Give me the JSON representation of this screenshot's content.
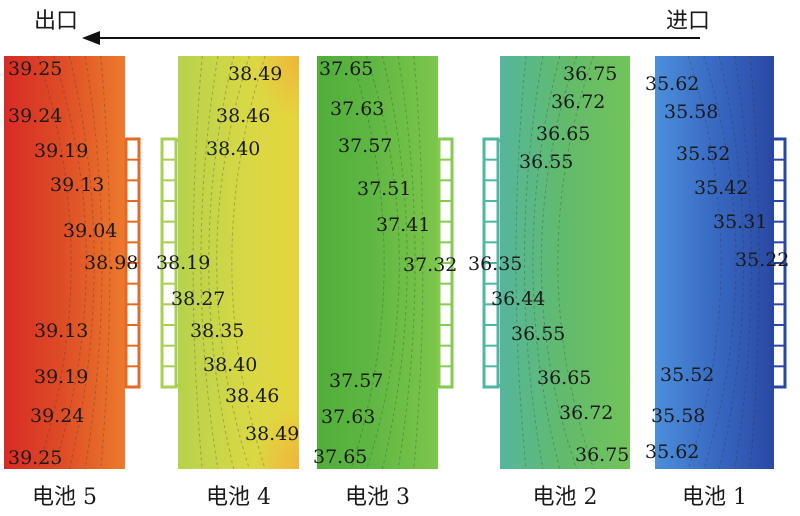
{
  "flow": {
    "outlet_label": "出口",
    "inlet_label": "进口",
    "direction": "right-to-left"
  },
  "chart_data": {
    "type": "heatmap",
    "unit": "",
    "panels": [
      {
        "name": "电池 5",
        "colors": {
          "edge": "#d92a25",
          "mid": "#dd4a26",
          "core": "#ec7a2c"
        },
        "fin_color": "#e46a24",
        "fin_side": "right",
        "labels": [
          {
            "text": "39.25",
            "value": 39.25
          },
          {
            "text": "39.24",
            "value": 39.24
          },
          {
            "text": "39.19",
            "value": 39.19
          },
          {
            "text": "39.13",
            "value": 39.13
          },
          {
            "text": "39.04",
            "value": 39.04
          },
          {
            "text": "38.98",
            "value": 38.98
          },
          {
            "text": "39.13",
            "value": 39.13
          },
          {
            "text": "39.19",
            "value": 39.19
          },
          {
            "text": "39.24",
            "value": 39.24
          },
          {
            "text": "39.25",
            "value": 39.25
          }
        ]
      },
      {
        "name": "电池 4",
        "colors": {
          "edge": "#e5d53c",
          "mid": "#d7d845",
          "core": "#b6d24c",
          "hot": "#f0b33a"
        },
        "fin_color": "#a9cf52",
        "fin_side": "left",
        "labels": [
          {
            "text": "38.49",
            "value": 38.49
          },
          {
            "text": "38.46",
            "value": 38.46
          },
          {
            "text": "38.40",
            "value": 38.4
          },
          {
            "text": "38.19",
            "value": 38.19
          },
          {
            "text": "38.27",
            "value": 38.27
          },
          {
            "text": "38.35",
            "value": 38.35
          },
          {
            "text": "38.40",
            "value": 38.4
          },
          {
            "text": "38.46",
            "value": 38.46
          },
          {
            "text": "38.49",
            "value": 38.49
          }
        ]
      },
      {
        "name": "电池 3",
        "colors": {
          "edge": "#51ad3a",
          "mid": "#5fb743",
          "core": "#7dc64b"
        },
        "fin_color": "#86ca52",
        "fin_side": "right",
        "labels": [
          {
            "text": "37.65",
            "value": 37.65
          },
          {
            "text": "37.63",
            "value": 37.63
          },
          {
            "text": "37.57",
            "value": 37.57
          },
          {
            "text": "37.51",
            "value": 37.51
          },
          {
            "text": "37.41",
            "value": 37.41
          },
          {
            "text": "37.32",
            "value": 37.32
          },
          {
            "text": "37.57",
            "value": 37.57
          },
          {
            "text": "37.63",
            "value": 37.63
          },
          {
            "text": "37.65",
            "value": 37.65
          }
        ]
      },
      {
        "name": "电池 2",
        "colors": {
          "edge": "#73c35a",
          "mid": "#62bb6c",
          "core": "#55b69c"
        },
        "fin_color": "#4fb6a4",
        "fin_side": "left",
        "labels": [
          {
            "text": "36.75",
            "value": 36.75
          },
          {
            "text": "36.72",
            "value": 36.72
          },
          {
            "text": "36.65",
            "value": 36.65
          },
          {
            "text": "36.55",
            "value": 36.55
          },
          {
            "text": "36.35",
            "value": 36.35
          },
          {
            "text": "36.44",
            "value": 36.44
          },
          {
            "text": "36.55",
            "value": 36.55
          },
          {
            "text": "36.65",
            "value": 36.65
          },
          {
            "text": "36.72",
            "value": 36.72
          },
          {
            "text": "36.75",
            "value": 36.75
          }
        ]
      },
      {
        "name": "电池 1",
        "colors": {
          "edge": "#4c8fdb",
          "mid": "#3a6dc4",
          "core": "#2a48a4"
        },
        "fin_color": "#2747a3",
        "fin_side": "right",
        "labels": [
          {
            "text": "35.62",
            "value": 35.62
          },
          {
            "text": "35.58",
            "value": 35.58
          },
          {
            "text": "35.52",
            "value": 35.52
          },
          {
            "text": "35.42",
            "value": 35.42
          },
          {
            "text": "35.31",
            "value": 35.31
          },
          {
            "text": "35.22",
            "value": 35.22
          },
          {
            "text": "35.52",
            "value": 35.52
          },
          {
            "text": "35.58",
            "value": 35.58
          },
          {
            "text": "35.62",
            "value": 35.62
          }
        ]
      }
    ]
  }
}
